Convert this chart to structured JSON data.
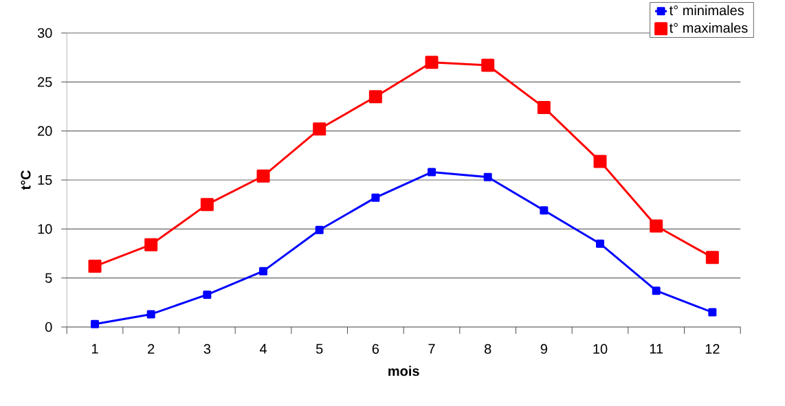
{
  "chart_data": {
    "type": "line",
    "xlabel": "mois",
    "ylabel": "t°C",
    "categories": [
      "1",
      "2",
      "3",
      "4",
      "5",
      "6",
      "7",
      "8",
      "9",
      "10",
      "11",
      "12"
    ],
    "series": [
      {
        "name": "t° minimales",
        "color": "#0000ff",
        "values": [
          0.3,
          1.3,
          3.3,
          5.7,
          9.9,
          13.2,
          15.8,
          15.3,
          11.9,
          8.5,
          3.7,
          1.5
        ]
      },
      {
        "name": "t° maximales",
        "color": "#ff0000",
        "values": [
          6.2,
          8.4,
          12.5,
          15.4,
          20.2,
          23.5,
          27.0,
          26.7,
          22.4,
          16.9,
          10.3,
          7.1
        ]
      }
    ],
    "ylim": [
      0,
      30
    ],
    "yticks": [
      0,
      5,
      10,
      15,
      20,
      25,
      30
    ],
    "grid": "y",
    "legend": "top right",
    "marker": "square",
    "line_style": "solid"
  }
}
